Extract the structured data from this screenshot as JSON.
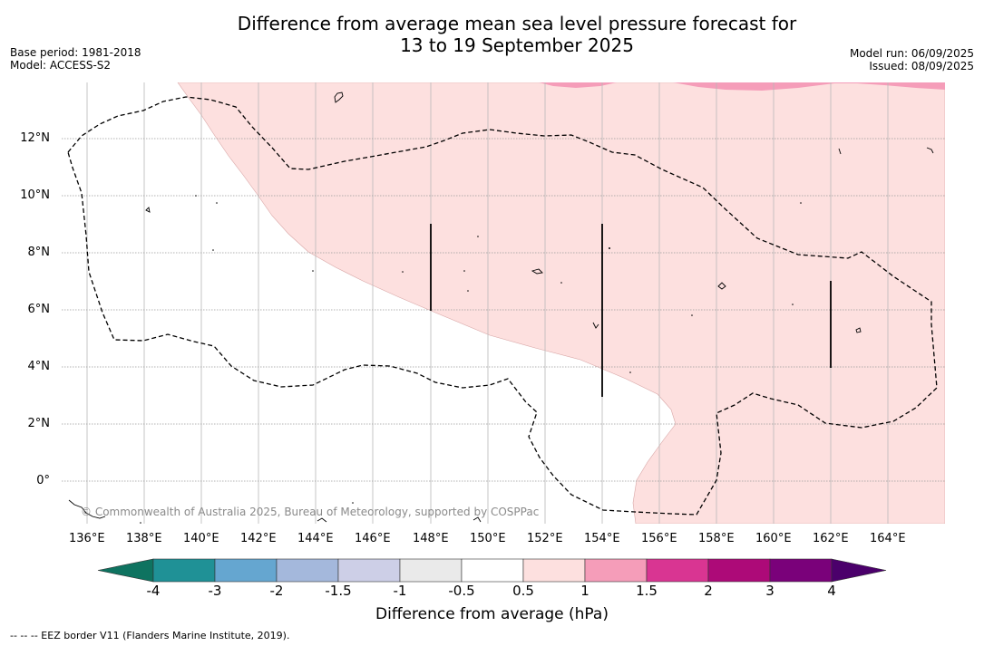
{
  "title": {
    "line1": "Difference from average mean sea level pressure forecast for",
    "line2": "13 to 19 September 2025"
  },
  "meta": {
    "base_period": "Base period: 1981-2018",
    "model": "Model: ACCESS-S2",
    "model_run": "Model run: 06/09/2025",
    "issued": "Issued: 08/09/2025"
  },
  "map": {
    "lon_labels": [
      "136°E",
      "138°E",
      "140°E",
      "142°E",
      "144°E",
      "146°E",
      "148°E",
      "150°E",
      "152°E",
      "154°E",
      "156°E",
      "158°E",
      "160°E",
      "162°E",
      "164°E"
    ],
    "lat_labels": [
      "12°N",
      "10°N",
      "8°N",
      "6°N",
      "4°N",
      "2°N",
      "0°"
    ],
    "copyright": "© Commonwealth of Australia 2025, Bureau of Meteorology, supported by COSPPac",
    "colors": {
      "anomaly_0_5_to_1": "#fde0df",
      "anomaly_1_to_1_5": "#f59db9"
    }
  },
  "colorbar": {
    "ticks": [
      "-4",
      "-3",
      "-2",
      "-1.5",
      "-1",
      "-0.5",
      "0.5",
      "1",
      "1.5",
      "2",
      "3",
      "4"
    ],
    "colors": [
      "#0e7360",
      "#1f9196",
      "#65a6d0",
      "#a4b8dc",
      "#cdcfe7",
      "#eaeaea",
      "#ffffff",
      "#fde0df",
      "#f59db9",
      "#d93592",
      "#ad0a78",
      "#7a017a",
      "#4b006b"
    ],
    "label": "Difference from average (hPa)"
  },
  "footnote": "--  --  -- EEZ border V11 (Flanders Marine Institute, 2019)."
}
